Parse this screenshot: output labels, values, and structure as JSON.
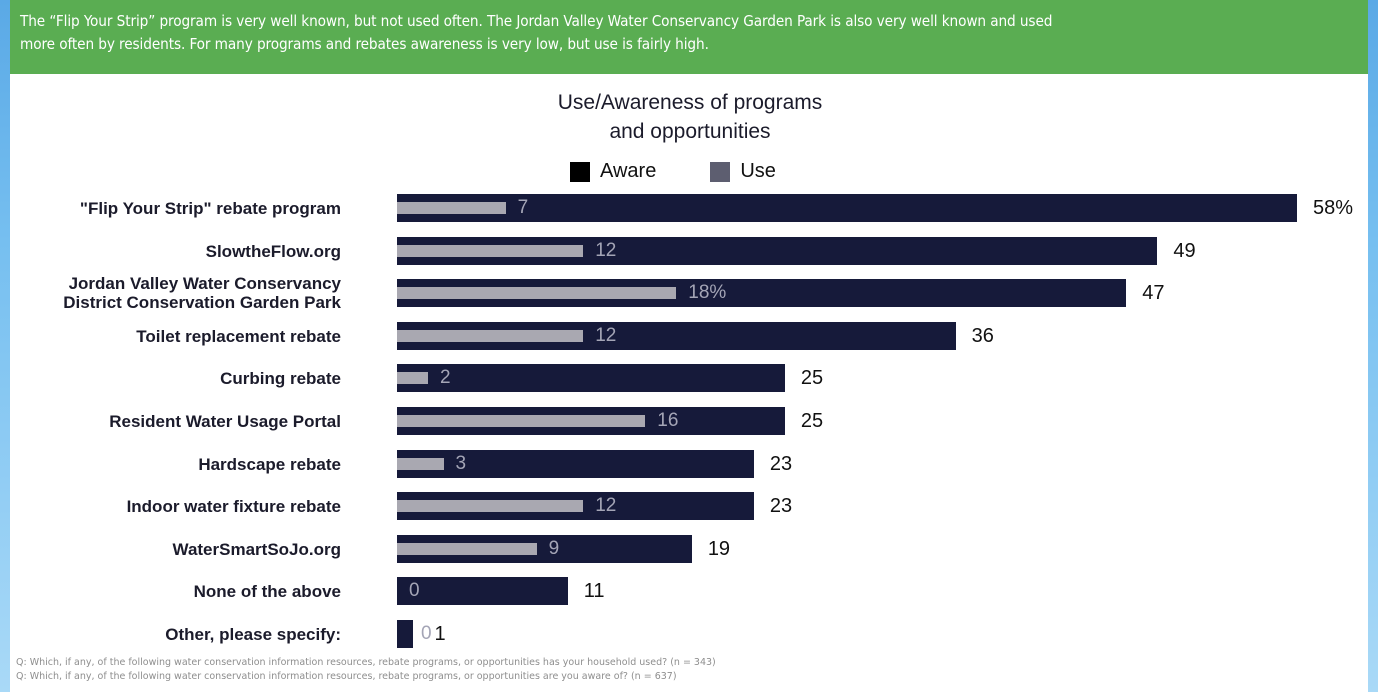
{
  "banner": {
    "line1": "The “Flip Your Strip” program is very well known, but not used often. The Jordan Valley Water Conservancy Garden Park is also very well known and used",
    "line2": "more often by residents. For many programs and rebates awareness is very low, but use is fairly high."
  },
  "chart_data": {
    "type": "bar",
    "orientation": "horizontal",
    "title_line1": "Use/Awareness of programs",
    "title_line2": "and opportunities",
    "legend": [
      "Aware",
      "Use"
    ],
    "legend_placement": "top",
    "categories": [
      "\"Flip Your Strip\" rebate program",
      "SlowtheFlow.org",
      "Jordan Valley Water Conservancy District Conservation Garden Park",
      "Toilet replacement rebate",
      "Curbing rebate",
      "Resident Water Usage Portal",
      "Hardscape rebate",
      "Indoor water fixture rebate",
      "WaterSmartSoJo.org",
      "None of the above",
      "Other, please specify:"
    ],
    "category_lines": [
      [
        "\"Flip Your Strip\" rebate program"
      ],
      [
        "SlowtheFlow.org"
      ],
      [
        "Jordan Valley Water Conservancy",
        "District Conservation Garden Park"
      ],
      [
        "Toilet replacement rebate"
      ],
      [
        "Curbing rebate"
      ],
      [
        "Resident Water Usage Portal"
      ],
      [
        "Hardscape rebate"
      ],
      [
        "Indoor water fixture rebate"
      ],
      [
        "WaterSmartSoJo.org"
      ],
      [
        "None of the above"
      ],
      [
        "Other, please specify:"
      ]
    ],
    "series": [
      {
        "name": "Aware",
        "values": [
          58,
          49,
          47,
          36,
          25,
          25,
          23,
          23,
          19,
          11,
          1
        ],
        "labels": [
          "58%",
          "49",
          "47",
          "36",
          "25",
          "25",
          "23",
          "23",
          "19",
          "11",
          "1"
        ],
        "color": "#161a3a"
      },
      {
        "name": "Use",
        "values": [
          7,
          12,
          18,
          12,
          2,
          16,
          3,
          12,
          9,
          0,
          0
        ],
        "labels": [
          "7",
          "12",
          "18%",
          "12",
          "2",
          "16",
          "3",
          "12",
          "9",
          "0",
          "0"
        ],
        "color": "#a9a8b1"
      }
    ],
    "xlim": [
      0,
      58
    ],
    "grid": false
  },
  "footnotes": [
    "Q: Which, if any, of the following water conservation information resources, rebate programs, or opportunities has your household used? (n = 343)",
    "Q: Which, if any, of the following water conservation information resources, rebate programs, or opportunities are you aware of? (n = 637)"
  ]
}
